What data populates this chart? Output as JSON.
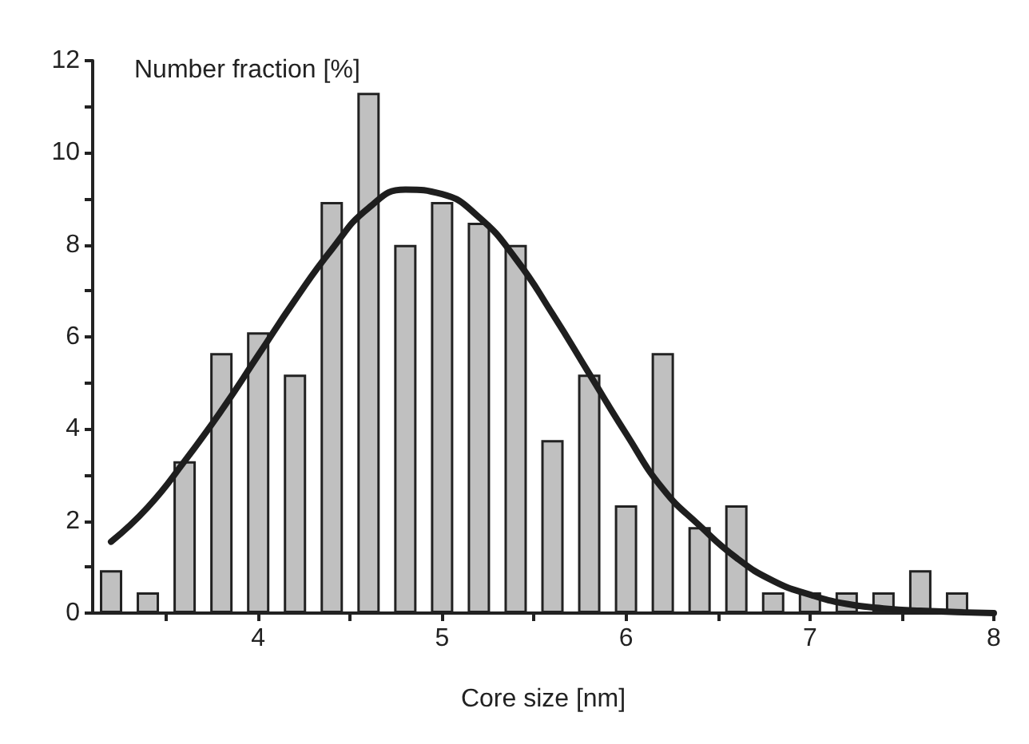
{
  "chart_data": {
    "type": "bar",
    "xlabel": "Core size [nm]",
    "ylabel": "Number fraction [%]",
    "xlim": [
      3.1,
      8
    ],
    "xticks": [
      {
        "value": 3.5,
        "label": null
      },
      4,
      {
        "value": 4.5,
        "label": null
      },
      5,
      {
        "value": 5.5,
        "label": null
      },
      6,
      {
        "value": 6.5,
        "label": null
      },
      7,
      {
        "value": 7.5,
        "label": null
      },
      8
    ],
    "ylim": [
      0,
      12
    ],
    "yticks": [
      0,
      {
        "value": 1,
        "label": null
      },
      2,
      {
        "value": 3,
        "label": null
      },
      4,
      {
        "value": 5,
        "label": null
      },
      6,
      {
        "value": 7,
        "label": null
      },
      8,
      {
        "value": 9,
        "label": null
      },
      10,
      {
        "value": 11,
        "label": null
      },
      12
    ],
    "grid": false,
    "series": [
      {
        "color": "#c0c0c0",
        "x": [
          3.2,
          3.4,
          3.6,
          3.8,
          4.0,
          4.2,
          4.4,
          4.6,
          4.8,
          5.0,
          5.2,
          5.4,
          5.6,
          5.8,
          6.0,
          6.2,
          6.4,
          6.6,
          6.8,
          7.0,
          7.2,
          7.4,
          7.6,
          7.8
        ],
        "values": [
          0.93,
          0.45,
          3.3,
          5.65,
          6.1,
          5.18,
          8.93,
          11.3,
          8.0,
          8.93,
          8.48,
          8.0,
          3.76,
          5.18,
          2.34,
          5.65,
          1.87,
          2.34,
          0.45,
          0.45,
          0.45,
          0.45,
          0.93,
          0.45
        ]
      },
      {
        "type": "line",
        "color": "#1e1e1e",
        "marker": "none",
        "x": [
          3.2,
          3.4,
          3.6,
          3.8,
          4.0,
          4.2,
          4.4,
          4.6,
          4.8,
          5.0,
          5.2,
          5.4,
          5.6,
          5.8,
          6.0,
          6.2,
          6.4,
          6.6,
          6.8,
          7.0,
          7.2,
          7.4,
          7.6,
          8.0
        ],
        "values": [
          1.55,
          2.3,
          3.3,
          4.4,
          5.6,
          6.8,
          7.9,
          8.8,
          9.2,
          9.1,
          8.6,
          7.7,
          6.5,
          5.2,
          3.9,
          2.7,
          1.9,
          1.2,
          0.7,
          0.4,
          0.2,
          0.1,
          0.05,
          0
        ]
      }
    ]
  }
}
